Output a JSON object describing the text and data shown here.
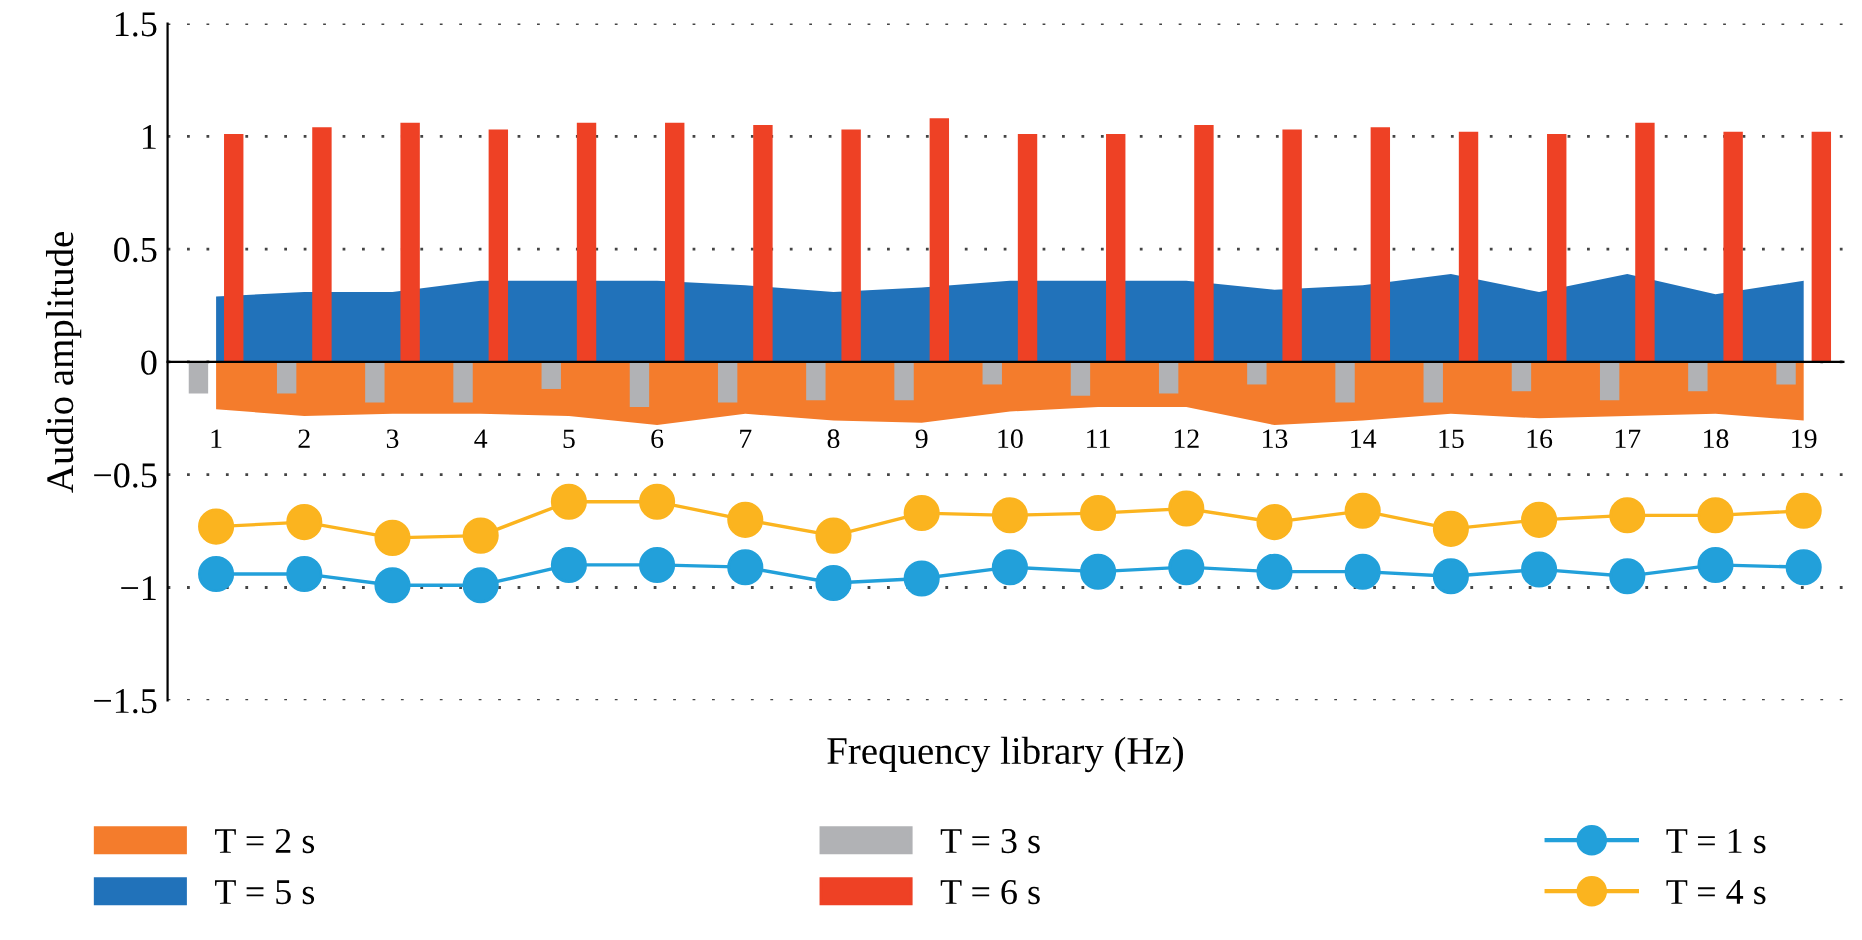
{
  "chart_data": {
    "type": "bar",
    "xlabel": "Frequency library (Hz)",
    "ylabel": "Audio amplitude",
    "categories": [
      "1",
      "2",
      "3",
      "4",
      "5",
      "6",
      "7",
      "8",
      "9",
      "10",
      "11",
      "12",
      "13",
      "14",
      "15",
      "16",
      "17",
      "18",
      "19"
    ],
    "series": [
      {
        "name": "T = 2 s",
        "type": "area",
        "color": "#f47c2c",
        "values": [
          -0.21,
          -0.24,
          -0.23,
          -0.23,
          -0.24,
          -0.28,
          -0.23,
          -0.26,
          -0.27,
          -0.22,
          -0.2,
          -0.2,
          -0.28,
          -0.26,
          -0.23,
          -0.25,
          -0.24,
          -0.23,
          -0.26
        ]
      },
      {
        "name": "T = 5 s",
        "type": "area",
        "color": "#2172ba",
        "values": [
          0.29,
          0.31,
          0.31,
          0.36,
          0.36,
          0.36,
          0.34,
          0.31,
          0.33,
          0.36,
          0.36,
          0.36,
          0.32,
          0.34,
          0.39,
          0.31,
          0.39,
          0.3,
          0.36
        ]
      },
      {
        "name": "T = 3 s",
        "color": "#b1b2b5",
        "values": [
          -0.14,
          -0.14,
          -0.18,
          -0.18,
          -0.12,
          -0.2,
          -0.18,
          -0.17,
          -0.17,
          -0.1,
          -0.15,
          -0.14,
          -0.1,
          -0.18,
          -0.18,
          -0.13,
          -0.17,
          -0.13,
          -0.1
        ]
      },
      {
        "name": "T = 6 s",
        "color": "#ee4125",
        "values": [
          1.01,
          1.04,
          1.06,
          1.03,
          1.06,
          1.06,
          1.05,
          1.03,
          1.08,
          1.01,
          1.01,
          1.05,
          1.03,
          1.04,
          1.02,
          1.01,
          1.06,
          1.02,
          1.02
        ]
      },
      {
        "name": "T = 1 s",
        "type": "line",
        "marker": "circle",
        "color": "#22a0da",
        "values": [
          -0.94,
          -0.94,
          -0.99,
          -0.99,
          -0.9,
          -0.9,
          -0.91,
          -0.98,
          -0.96,
          -0.91,
          -0.93,
          -0.91,
          -0.93,
          -0.93,
          -0.95,
          -0.92,
          -0.95,
          -0.9,
          -0.91
        ]
      },
      {
        "name": "T = 4 s",
        "type": "line",
        "marker": "circle",
        "color": "#fbb41f",
        "values": [
          -0.73,
          -0.71,
          -0.78,
          -0.77,
          -0.62,
          -0.62,
          -0.7,
          -0.77,
          -0.67,
          -0.68,
          -0.67,
          -0.65,
          -0.71,
          -0.66,
          -0.74,
          -0.7,
          -0.68,
          -0.68,
          -0.66
        ]
      }
    ],
    "ylim": [
      -1.5,
      1.5
    ],
    "yticks": [
      {
        "value": -1.5,
        "label": "−1.5"
      },
      {
        "value": -1,
        "label": "−1"
      },
      {
        "value": -0.5,
        "label": "−0.5"
      },
      0,
      0.5,
      1,
      1.5
    ],
    "grid": "y",
    "legend": "bottom",
    "line_style": "solid"
  }
}
